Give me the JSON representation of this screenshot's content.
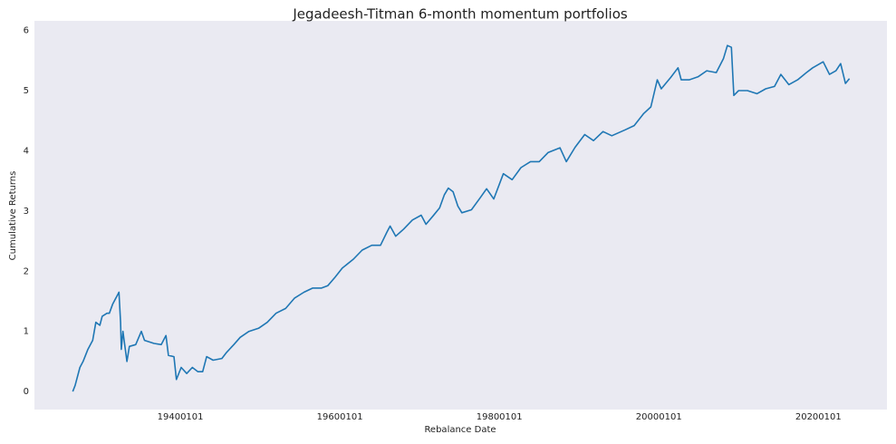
{
  "chart_data": {
    "type": "line",
    "title": "Jegadeesh-Titman 6-month momentum portfolios",
    "x_label": "Rebalance Date",
    "y_label": "Cumulative Returns",
    "x": [
      1926.5,
      1926.8,
      1927.4,
      1927.8,
      1928.4,
      1929.0,
      1929.4,
      1929.9,
      1930.2,
      1930.8,
      1931.1,
      1931.5,
      1932.3,
      1932.5,
      1932.6,
      1932.8,
      1933.3,
      1933.6,
      1934.4,
      1935.1,
      1935.5,
      1936.7,
      1937.6,
      1938.2,
      1938.5,
      1939.2,
      1939.5,
      1940.1,
      1940.8,
      1941.5,
      1942.2,
      1942.8,
      1943.3,
      1944.1,
      1945.2,
      1945.8,
      1946.7,
      1947.5,
      1948.6,
      1949.8,
      1950.9,
      1952.0,
      1953.2,
      1954.3,
      1955.5,
      1956.6,
      1957.7,
      1958.5,
      1959.4,
      1960.3,
      1961.7,
      1962.8,
      1964.0,
      1965.1,
      1965.9,
      1966.3,
      1967.0,
      1968.0,
      1969.1,
      1970.2,
      1970.8,
      1971.7,
      1972.5,
      1973.1,
      1973.6,
      1974.2,
      1974.8,
      1975.3,
      1976.5,
      1977.6,
      1978.4,
      1979.3,
      1980.5,
      1981.6,
      1982.7,
      1983.9,
      1985.0,
      1986.1,
      1987.6,
      1988.4,
      1989.5,
      1990.7,
      1991.8,
      1993.0,
      1994.1,
      1995.8,
      1996.9,
      1998.1,
      1999.0,
      1999.8,
      2000.3,
      2001.5,
      2002.4,
      2002.8,
      2003.8,
      2004.9,
      2006.0,
      2007.2,
      2008.1,
      2008.6,
      2009.1,
      2009.4,
      2010.0,
      2011.1,
      2012.3,
      2013.4,
      2014.5,
      2015.3,
      2016.3,
      2017.4,
      2018.5,
      2019.3,
      2020.6,
      2021.4,
      2022.2,
      2022.8,
      2023.4,
      2023.9
    ],
    "series": [
      {
        "name": "Cumulative Returns",
        "color": "#1f77b4",
        "values": [
          0.0,
          0.1,
          0.4,
          0.5,
          0.7,
          0.85,
          1.15,
          1.1,
          1.25,
          1.3,
          1.3,
          1.45,
          1.65,
          1.15,
          0.7,
          1.0,
          0.5,
          0.75,
          0.78,
          1.0,
          0.85,
          0.8,
          0.78,
          0.93,
          0.6,
          0.58,
          0.2,
          0.4,
          0.3,
          0.4,
          0.33,
          0.33,
          0.58,
          0.52,
          0.55,
          0.65,
          0.78,
          0.9,
          1.0,
          1.05,
          1.15,
          1.3,
          1.38,
          1.55,
          1.65,
          1.72,
          1.72,
          1.76,
          1.9,
          2.05,
          2.2,
          2.35,
          2.43,
          2.43,
          2.65,
          2.75,
          2.58,
          2.7,
          2.85,
          2.93,
          2.78,
          2.92,
          3.05,
          3.27,
          3.38,
          3.32,
          3.08,
          2.97,
          3.02,
          3.22,
          3.37,
          3.2,
          3.62,
          3.52,
          3.72,
          3.82,
          3.82,
          3.97,
          4.05,
          3.82,
          4.06,
          4.27,
          4.17,
          4.32,
          4.25,
          4.35,
          4.42,
          4.62,
          4.73,
          5.18,
          5.03,
          5.22,
          5.38,
          5.18,
          5.18,
          5.23,
          5.33,
          5.3,
          5.53,
          5.75,
          5.72,
          4.92,
          5.0,
          5.0,
          4.95,
          5.03,
          5.07,
          5.27,
          5.1,
          5.18,
          5.3,
          5.38,
          5.48,
          5.27,
          5.33,
          5.45,
          5.12,
          5.2
        ]
      }
    ],
    "xlim": [
      1921.7,
      2028.6
    ],
    "xticks": [
      {
        "value": 1940,
        "label": "19400101"
      },
      {
        "value": 1960,
        "label": "19600101"
      },
      {
        "value": 1980,
        "label": "19800101"
      },
      {
        "value": 2000,
        "label": "20000101"
      },
      {
        "value": 2020,
        "label": "20200101"
      }
    ],
    "ylim": [
      -0.3,
      6.16
    ],
    "yticks": [
      0,
      1,
      2,
      3,
      4,
      5,
      6
    ],
    "grid": false
  }
}
